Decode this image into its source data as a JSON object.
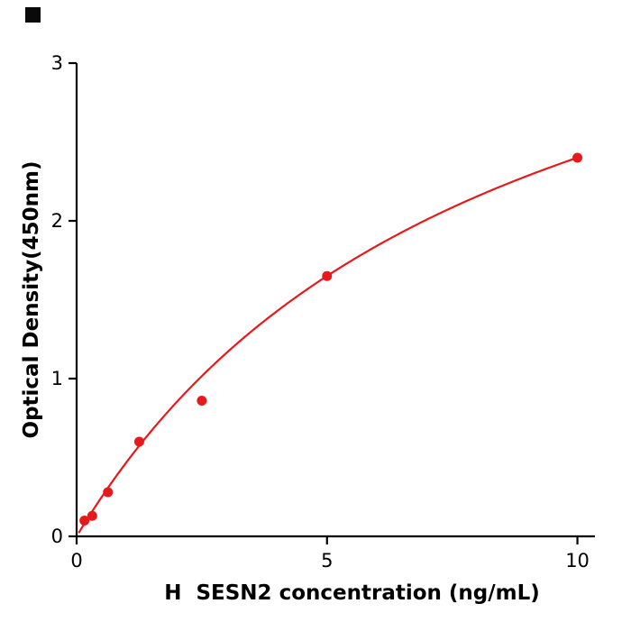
{
  "figure": {
    "background": "#ffffff",
    "corner_marker_color": "#0a0a0a"
  },
  "chart_data": {
    "type": "scatter",
    "title": "",
    "xlabel": "H  SESN2 concentration (ng/mL)",
    "ylabel": "Optical Density(450nm)",
    "xlim": [
      0,
      10.35
    ],
    "ylim": [
      0,
      3
    ],
    "x_ticks": [
      0,
      5,
      10
    ],
    "y_ticks": [
      0,
      1,
      2,
      3
    ],
    "grid": false,
    "legend": null,
    "points": {
      "x": [
        0.156,
        0.312,
        0.625,
        1.25,
        2.5,
        5,
        10
      ],
      "y": [
        0.1,
        0.13,
        0.28,
        0.6,
        0.86,
        1.65,
        2.4
      ]
    },
    "fit_curve": {
      "model": "michaelis-menten",
      "vmax": 4.4,
      "km": 8.33,
      "x_start": 0.05,
      "x_end": 10
    },
    "series_color": "#e8191c",
    "axis_color": "#000000"
  }
}
